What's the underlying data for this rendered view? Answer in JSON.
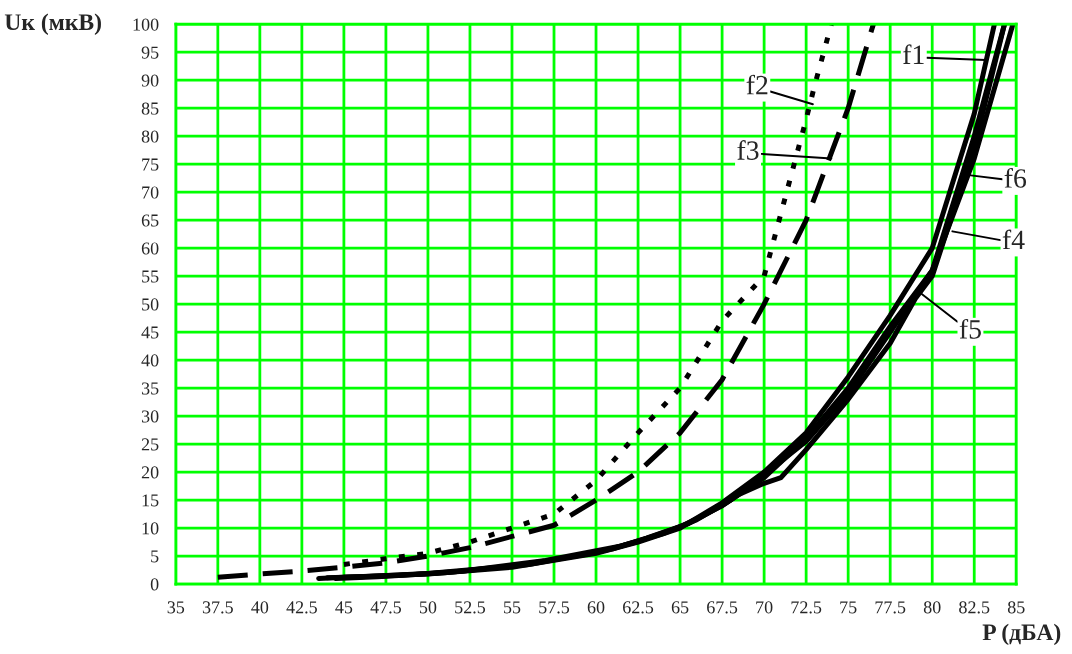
{
  "chart_data": {
    "type": "line",
    "xlabel": "P (дБА)",
    "ylabel": "Uк (мкВ)",
    "xlim": [
      35,
      85
    ],
    "xticks": [
      35,
      37.5,
      40,
      42.5,
      45,
      47.5,
      50,
      52.5,
      55,
      57.5,
      60,
      62.5,
      65,
      67.5,
      70,
      72.5,
      75,
      77.5,
      80,
      82.5,
      85
    ],
    "ylim": [
      0,
      100
    ],
    "yticks": [
      0,
      5,
      10,
      15,
      20,
      25,
      30,
      35,
      40,
      45,
      50,
      55,
      60,
      65,
      70,
      75,
      80,
      85,
      90,
      95,
      100
    ],
    "grid": true,
    "marker": "none",
    "series": [
      {
        "color": "#000000",
        "line_style": "solid",
        "x": [
          43.5,
          45,
          50,
          55,
          60,
          62.5,
          65,
          67.5,
          70,
          72.5,
          75,
          77.5,
          80,
          82.5,
          83.7
        ],
        "values": [
          1,
          1.2,
          1.8,
          3,
          5.5,
          7.5,
          10,
          14.5,
          20,
          27,
          37,
          48,
          60,
          84,
          100
        ]
      },
      {
        "color": "#000000",
        "line_style": "dotted",
        "x": [
          45,
          47.5,
          50,
          52.5,
          55,
          57.5,
          60,
          62.5,
          65,
          67.5,
          70,
          72.5,
          73,
          74
        ],
        "values": [
          3.5,
          4.5,
          5.5,
          7.5,
          10,
          12.5,
          18.5,
          27,
          35,
          47,
          55,
          83,
          89,
          100
        ]
      },
      {
        "color": "#000000",
        "line_style": "dashed",
        "x": [
          37.5,
          40,
          42.5,
          45,
          47.5,
          50,
          52.5,
          55,
          57.5,
          60,
          62.5,
          65,
          67.5,
          70,
          72.5,
          75,
          76.5
        ],
        "values": [
          1.2,
          1.8,
          2.3,
          3,
          3.8,
          5,
          6.5,
          8.5,
          10.5,
          15,
          20,
          27,
          36.5,
          50,
          65,
          85,
          100
        ]
      },
      {
        "color": "#000000",
        "line_style": "solid",
        "x": [
          44,
          46,
          50,
          55,
          60,
          62.5,
          65,
          67.5,
          70,
          72.5,
          75,
          77.5,
          80,
          82.5,
          84.3
        ],
        "values": [
          1.1,
          1.3,
          1.9,
          3.2,
          5.6,
          7.6,
          10.2,
          14,
          19,
          26,
          35,
          46,
          56,
          80,
          100
        ]
      },
      {
        "color": "#000000",
        "line_style": "solid",
        "x": [
          44.5,
          47,
          51,
          56,
          61,
          63,
          65.5,
          67.5,
          68.5,
          70,
          71,
          72.5,
          75,
          77.5,
          79,
          80,
          82.5,
          84.3
        ],
        "values": [
          1,
          1.3,
          2,
          3.5,
          6.3,
          8.2,
          10.8,
          14,
          16,
          18,
          19,
          24,
          33,
          43,
          51,
          55,
          78,
          100
        ]
      },
      {
        "color": "#000000",
        "line_style": "solid",
        "x": [
          45,
          48,
          52,
          57,
          61.5,
          64,
          66,
          68,
          70,
          72.5,
          75,
          77.5,
          80,
          82.5,
          84.8
        ],
        "values": [
          1.2,
          1.5,
          2.3,
          4.2,
          6.8,
          9,
          11.5,
          15,
          19.5,
          25.5,
          34,
          45,
          56,
          76,
          100
        ]
      }
    ],
    "annotations": [
      {
        "text": "f1",
        "x": 83.2,
        "y": 93.6
      },
      {
        "text": "f2",
        "x": 72.9,
        "y": 85.7
      },
      {
        "text": "f3",
        "x": 74,
        "y": 76
      },
      {
        "text": "f4",
        "x": 81.2,
        "y": 63
      },
      {
        "text": "f5",
        "x": 79.3,
        "y": 52
      },
      {
        "text": "f6",
        "x": 82.3,
        "y": 73
      }
    ]
  }
}
